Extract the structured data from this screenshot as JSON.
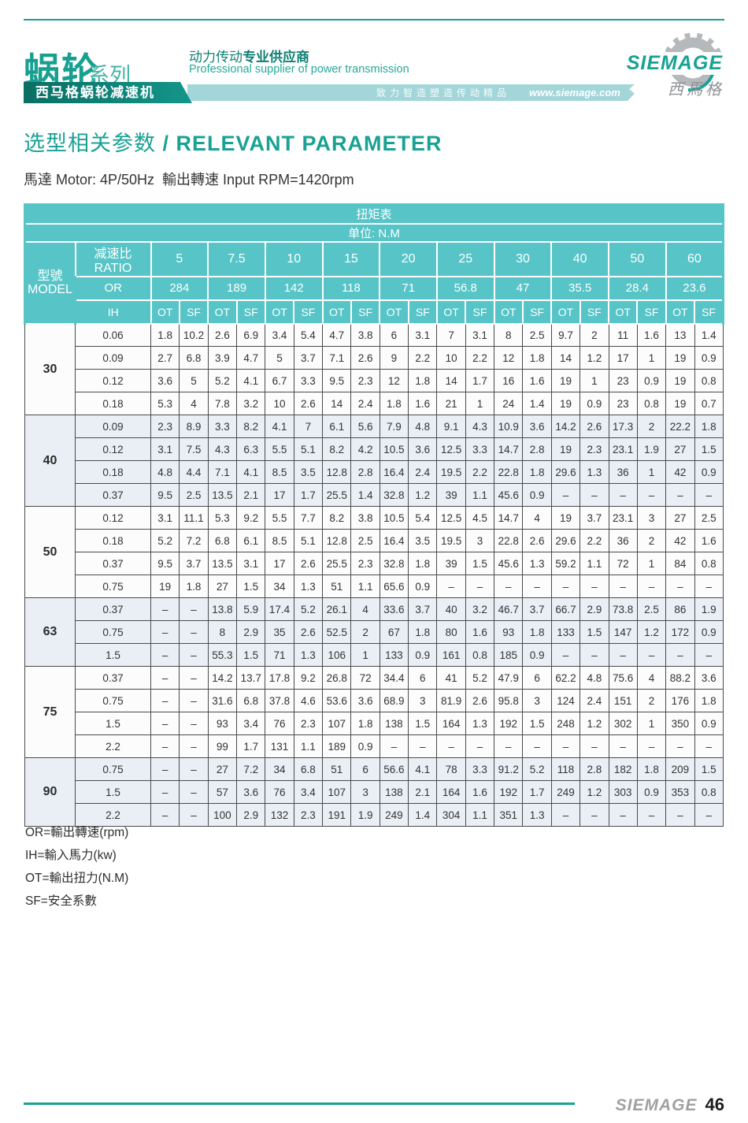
{
  "theme": {
    "teal": "#18a294",
    "table_header": "#57c4c7",
    "dark_bar": "#0c7f73",
    "light_bar": "#a3d6d9",
    "alt_row": "#eaeff5",
    "border_dark": "#4a4a4a",
    "logo_gray": "#9a9da0"
  },
  "header": {
    "series_title": "蜗轮",
    "series_suffix": "系列",
    "product_bar": "西马格蜗轮减速机",
    "slogan_cn_regular": "动力传动",
    "slogan_cn_bold": "专业供应商",
    "slogan_en": "Professional supplier of power transmission",
    "tagline": "致力智造塑造传动精品",
    "website": "www.siemage.com",
    "logo_text": "SIEMAGE",
    "logo_cn": "西馬格"
  },
  "page": {
    "title_cn": "选型相关参数 ",
    "title_en": "/ RELEVANT PARAMETER",
    "subtitle": "馬達 Motor: 4P/50Hz  輸出轉速 Input RPM=1420rpm"
  },
  "table": {
    "title": "扭矩表",
    "unit": "单位: N.M",
    "model_header": [
      "型號",
      "MODEL"
    ],
    "ratio_label": "减速比RATIO",
    "or_label": "OR",
    "ih_label": "IH",
    "ot_label": "OT",
    "sf_label": "SF",
    "ratios": [
      "5",
      "7.5",
      "10",
      "15",
      "20",
      "25",
      "30",
      "40",
      "50",
      "60"
    ],
    "or_values": [
      "284",
      "189",
      "142",
      "118",
      "71",
      "56.8",
      "47",
      "35.5",
      "28.4",
      "23.6"
    ],
    "groups": [
      {
        "model": "30",
        "rows": [
          {
            "ih": "0.06",
            "values": [
              "1.8",
              "10.2",
              "2.6",
              "6.9",
              "3.4",
              "5.4",
              "4.7",
              "3.8",
              "6",
              "3.1",
              "7",
              "3.1",
              "8",
              "2.5",
              "9.7",
              "2",
              "11",
              "1.6",
              "13",
              "1.4"
            ]
          },
          {
            "ih": "0.09",
            "values": [
              "2.7",
              "6.8",
              "3.9",
              "4.7",
              "5",
              "3.7",
              "7.1",
              "2.6",
              "9",
              "2.2",
              "10",
              "2.2",
              "12",
              "1.8",
              "14",
              "1.2",
              "17",
              "1",
              "19",
              "0.9"
            ]
          },
          {
            "ih": "0.12",
            "values": [
              "3.6",
              "5",
              "5.2",
              "4.1",
              "6.7",
              "3.3",
              "9.5",
              "2.3",
              "12",
              "1.8",
              "14",
              "1.7",
              "16",
              "1.6",
              "19",
              "1",
              "23",
              "0.9",
              "19",
              "0.8"
            ]
          },
          {
            "ih": "0.18",
            "values": [
              "5.3",
              "4",
              "7.8",
              "3.2",
              "10",
              "2.6",
              "14",
              "2.4",
              "1.8",
              "1.6",
              "21",
              "1",
              "24",
              "1.4",
              "19",
              "0.9",
              "23",
              "0.8",
              "19",
              "0.7"
            ]
          }
        ]
      },
      {
        "model": "40",
        "rows": [
          {
            "ih": "0.09",
            "values": [
              "2.3",
              "8.9",
              "3.3",
              "8.2",
              "4.1",
              "7",
              "6.1",
              "5.6",
              "7.9",
              "4.8",
              "9.1",
              "4.3",
              "10.9",
              "3.6",
              "14.2",
              "2.6",
              "17.3",
              "2",
              "22.2",
              "1.8"
            ]
          },
          {
            "ih": "0.12",
            "values": [
              "3.1",
              "7.5",
              "4.3",
              "6.3",
              "5.5",
              "5.1",
              "8.2",
              "4.2",
              "10.5",
              "3.6",
              "12.5",
              "3.3",
              "14.7",
              "2.8",
              "19",
              "2.3",
              "23.1",
              "1.9",
              "27",
              "1.5"
            ]
          },
          {
            "ih": "0.18",
            "values": [
              "4.8",
              "4.4",
              "7.1",
              "4.1",
              "8.5",
              "3.5",
              "12.8",
              "2.8",
              "16.4",
              "2.4",
              "19.5",
              "2.2",
              "22.8",
              "1.8",
              "29.6",
              "1.3",
              "36",
              "1",
              "42",
              "0.9"
            ]
          },
          {
            "ih": "0.37",
            "values": [
              "9.5",
              "2.5",
              "13.5",
              "2.1",
              "17",
              "1.7",
              "25.5",
              "1.4",
              "32.8",
              "1.2",
              "39",
              "1.1",
              "45.6",
              "0.9",
              "–",
              "–",
              "–",
              "–",
              "–",
              "–"
            ]
          }
        ]
      },
      {
        "model": "50",
        "rows": [
          {
            "ih": "0.12",
            "values": [
              "3.1",
              "11.1",
              "5.3",
              "9.2",
              "5.5",
              "7.7",
              "8.2",
              "3.8",
              "10.5",
              "5.4",
              "12.5",
              "4.5",
              "14.7",
              "4",
              "19",
              "3.7",
              "23.1",
              "3",
              "27",
              "2.5"
            ]
          },
          {
            "ih": "0.18",
            "values": [
              "5.2",
              "7.2",
              "6.8",
              "6.1",
              "8.5",
              "5.1",
              "12.8",
              "2.5",
              "16.4",
              "3.5",
              "19.5",
              "3",
              "22.8",
              "2.6",
              "29.6",
              "2.2",
              "36",
              "2",
              "42",
              "1.6"
            ]
          },
          {
            "ih": "0.37",
            "values": [
              "9.5",
              "3.7",
              "13.5",
              "3.1",
              "17",
              "2.6",
              "25.5",
              "2.3",
              "32.8",
              "1.8",
              "39",
              "1.5",
              "45.6",
              "1.3",
              "59.2",
              "1.1",
              "72",
              "1",
              "84",
              "0.8"
            ]
          },
          {
            "ih": "0.75",
            "values": [
              "19",
              "1.8",
              "27",
              "1.5",
              "34",
              "1.3",
              "51",
              "1.1",
              "65.6",
              "0.9",
              "–",
              "–",
              "–",
              "–",
              "–",
              "–",
              "–",
              "–",
              "–",
              "–"
            ]
          }
        ]
      },
      {
        "model": "63",
        "rows": [
          {
            "ih": "0.37",
            "values": [
              "–",
              "–",
              "13.8",
              "5.9",
              "17.4",
              "5.2",
              "26.1",
              "4",
              "33.6",
              "3.7",
              "40",
              "3.2",
              "46.7",
              "3.7",
              "66.7",
              "2.9",
              "73.8",
              "2.5",
              "86",
              "1.9"
            ]
          },
          {
            "ih": "0.75",
            "values": [
              "–",
              "–",
              "8",
              "2.9",
              "35",
              "2.6",
              "52.5",
              "2",
              "67",
              "1.8",
              "80",
              "1.6",
              "93",
              "1.8",
              "133",
              "1.5",
              "147",
              "1.2",
              "172",
              "0.9"
            ]
          },
          {
            "ih": "1.5",
            "values": [
              "–",
              "–",
              "55.3",
              "1.5",
              "71",
              "1.3",
              "106",
              "1",
              "133",
              "0.9",
              "161",
              "0.8",
              "185",
              "0.9",
              "–",
              "–",
              "–",
              "–",
              "–",
              "–"
            ]
          }
        ]
      },
      {
        "model": "75",
        "rows": [
          {
            "ih": "0.37",
            "values": [
              "–",
              "–",
              "14.2",
              "13.7",
              "17.8",
              "9.2",
              "26.8",
              "72",
              "34.4",
              "6",
              "41",
              "5.2",
              "47.9",
              "6",
              "62.2",
              "4.8",
              "75.6",
              "4",
              "88.2",
              "3.6"
            ]
          },
          {
            "ih": "0.75",
            "values": [
              "–",
              "–",
              "31.6",
              "6.8",
              "37.8",
              "4.6",
              "53.6",
              "3.6",
              "68.9",
              "3",
              "81.9",
              "2.6",
              "95.8",
              "3",
              "124",
              "2.4",
              "151",
              "2",
              "176",
              "1.8"
            ]
          },
          {
            "ih": "1.5",
            "values": [
              "–",
              "–",
              "93",
              "3.4",
              "76",
              "2.3",
              "107",
              "1.8",
              "138",
              "1.5",
              "164",
              "1.3",
              "192",
              "1.5",
              "248",
              "1.2",
              "302",
              "1",
              "350",
              "0.9"
            ]
          },
          {
            "ih": "2.2",
            "values": [
              "–",
              "–",
              "99",
              "1.7",
              "131",
              "1.1",
              "189",
              "0.9",
              "–",
              "–",
              "–",
              "–",
              "–",
              "–",
              "–",
              "–",
              "–",
              "–",
              "–",
              "–"
            ]
          }
        ]
      },
      {
        "model": "90",
        "rows": [
          {
            "ih": "0.75",
            "values": [
              "–",
              "–",
              "27",
              "7.2",
              "34",
              "6.8",
              "51",
              "6",
              "56.6",
              "4.1",
              "78",
              "3.3",
              "91.2",
              "5.2",
              "118",
              "2.8",
              "182",
              "1.8",
              "209",
              "1.5"
            ]
          },
          {
            "ih": "1.5",
            "values": [
              "–",
              "–",
              "57",
              "3.6",
              "76",
              "3.4",
              "107",
              "3",
              "138",
              "2.1",
              "164",
              "1.6",
              "192",
              "1.7",
              "249",
              "1.2",
              "303",
              "0.9",
              "353",
              "0.8"
            ]
          },
          {
            "ih": "2.2",
            "values": [
              "–",
              "–",
              "100",
              "2.9",
              "132",
              "2.3",
              "191",
              "1.9",
              "249",
              "1.4",
              "304",
              "1.1",
              "351",
              "1.3",
              "–",
              "–",
              "–",
              "–",
              "–",
              "–"
            ]
          }
        ]
      }
    ]
  },
  "legend": [
    "OR=輸出轉速(rpm)",
    "IH=輸入馬力(kw)",
    "OT=輸出扭力(N.M)",
    "SF=安全系數"
  ],
  "footer": {
    "brand": "SIEMAGE",
    "page_number": "46"
  }
}
